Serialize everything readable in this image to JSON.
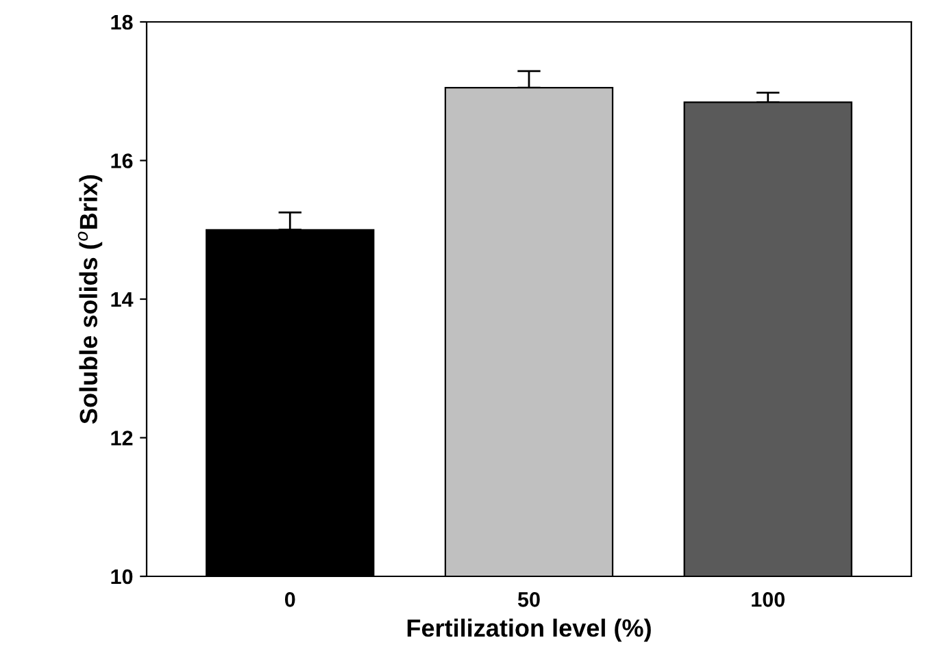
{
  "chart_data": {
    "type": "bar",
    "xlabel": "Fertilization level (%)",
    "ylabel": "Soluble solids ($^{o}$Brix)",
    "categories": [
      "0",
      "50",
      "100"
    ],
    "values": [
      15.0,
      17.05,
      16.84
    ],
    "colors": [
      "#000000",
      "#c0c0c0",
      "#5a5a5a"
    ],
    "errors": [
      [
        15.0,
        15.25
      ],
      [
        17.05,
        17.29
      ],
      [
        16.84,
        16.98
      ]
    ],
    "ylim": [
      10,
      18
    ],
    "yticks": [
      10,
      12,
      14,
      16,
      18
    ],
    "grid": false,
    "legend": false
  }
}
